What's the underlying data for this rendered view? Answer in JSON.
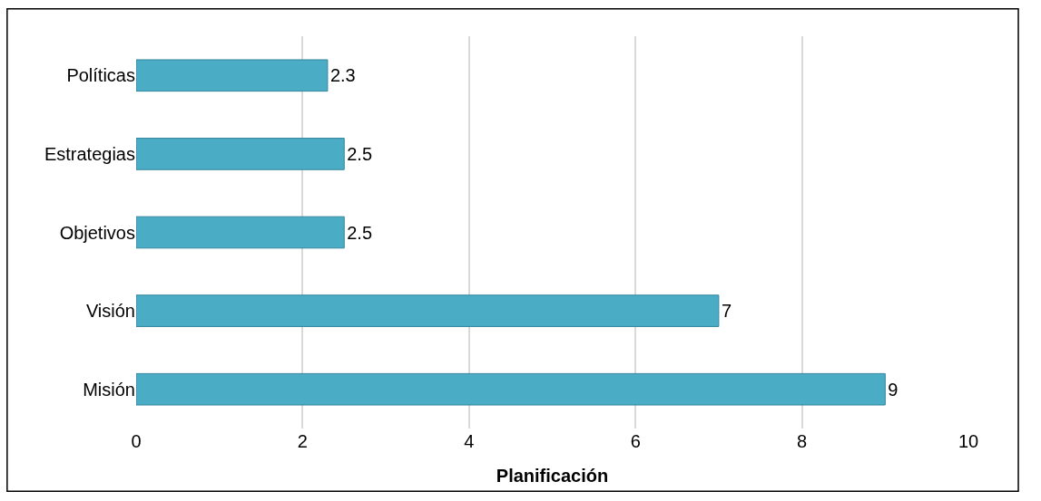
{
  "chart_data": {
    "type": "bar",
    "orientation": "horizontal",
    "xlabel": "Planificación",
    "categories": [
      "Políticas",
      "Estrategias",
      "Objetivos",
      "Visión",
      "Misión"
    ],
    "values": [
      2.3,
      2.5,
      2.5,
      7,
      9
    ],
    "color": "#4bacc6",
    "xlim": [
      0,
      10
    ],
    "xticks": [
      0,
      2,
      4,
      6,
      8,
      10
    ],
    "grid": "x",
    "data_labels": true
  }
}
